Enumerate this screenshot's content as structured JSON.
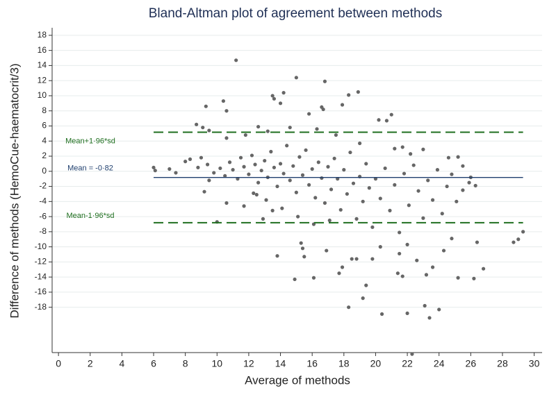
{
  "chart_data": {
    "type": "scatter",
    "title": "Bland-Altman plot of agreement between methods",
    "x_label": "Average of methods",
    "y_label": "Difference of methods (HemoCue-haematocrit/3)",
    "xlim": [
      -0.4,
      30.5
    ],
    "ylim": [
      -24,
      19
    ],
    "xticks": [
      0,
      2,
      4,
      6,
      8,
      10,
      12,
      14,
      16,
      18,
      20,
      22,
      24,
      26,
      28,
      30
    ],
    "yticks": [
      -18,
      -16,
      -14,
      -12,
      -10,
      -8,
      -6,
      -4,
      -2,
      0,
      2,
      4,
      6,
      8,
      10,
      12,
      14,
      16,
      18
    ],
    "grid": true,
    "color": "#666666",
    "hlines": [
      {
        "label": "Mean+1·96*sd",
        "value": 5.17,
        "color": "#1e6e1e",
        "style": "dashed"
      },
      {
        "label": "Mean = -0·82",
        "value": -0.82,
        "color": "#1f3f6e",
        "style": "solid"
      },
      {
        "label": "Mean-1·96*sd",
        "value": -6.81,
        "color": "#1e6e1e",
        "style": "dashed"
      }
    ],
    "x": [
      11.2,
      15,
      16.8,
      14.2,
      13.5,
      13.6,
      18.3,
      18.9,
      10.4,
      9.3,
      10.6,
      14,
      15.8,
      16.6,
      16.7,
      17.9,
      20.2,
      21,
      20.7,
      22.3,
      22,
      20.4,
      23.4,
      23.1,
      24,
      18.3,
      19.2,
      19.4,
      17.7,
      16.1,
      14.9,
      23.2,
      25.2,
      26.2,
      26.8,
      29.3,
      28.7,
      29,
      26.4,
      21.4,
      21.7,
      23.6,
      13.8,
      15.5,
      6,
      6.1,
      7,
      7.4,
      8,
      8.3,
      8.7,
      9.1,
      9.5,
      10.6,
      10,
      17.9,
      18.5,
      18.8,
      19.8,
      20.3,
      21.5,
      22,
      22.6,
      24.3,
      24.8,
      15.3,
      15.4,
      16.9,
      12.9,
      11.7,
      10.6,
      9.5,
      9.2,
      26.3,
      25.9,
      25.2,
      24.6,
      25.5,
      22.2,
      21.2,
      21.7,
      23,
      19,
      17.5,
      16.3,
      14.6,
      12.6,
      13.2,
      11.8,
      10.2,
      10.5,
      10.8,
      11,
      11.3,
      11.5,
      11.7,
      12,
      12.2,
      12.4,
      12.6,
      12.8,
      13,
      13.2,
      13.4,
      13.6,
      13.8,
      14,
      14.2,
      14.4,
      14.6,
      14.8,
      15,
      15.2,
      15.4,
      15.6,
      15.8,
      16,
      16.2,
      16.4,
      16.6,
      16.8,
      17,
      17.2,
      17.4,
      17.6,
      17.8,
      18,
      18.2,
      18.4,
      18.6,
      18.8,
      19,
      19.2,
      19.4,
      19.6,
      19.8,
      20,
      20.3,
      20.6,
      20.9,
      21.2,
      21.5,
      21.8,
      22.1,
      22.4,
      22.7,
      23,
      23.3,
      23.6,
      23.9,
      24.2,
      24.5,
      24.8,
      25.1,
      25.5,
      26,
      9,
      9.4,
      9.8,
      8.8,
      12.3,
      13.1,
      14.1,
      15.1,
      16.1,
      17.1,
      13.5,
      12.5
    ],
    "y": [
      14.7,
      12.4,
      11.9,
      10.4,
      10,
      9.6,
      10.1,
      10.5,
      9.3,
      8.6,
      8,
      9,
      7.6,
      8.5,
      8.2,
      8.8,
      6.8,
      7.5,
      6.7,
      -24.2,
      -18.8,
      -18.9,
      -19.4,
      -17.8,
      -18.3,
      -18,
      -16.8,
      -15.1,
      -13.5,
      -14.1,
      -14.3,
      -13.7,
      -14.1,
      -14.2,
      -12.9,
      -8,
      -9.4,
      -9,
      -9.4,
      -13.5,
      -13.9,
      -12.7,
      -11.2,
      -11.3,
      0.5,
      0.1,
      0.3,
      -0.2,
      1.3,
      1.6,
      6.2,
      5.8,
      5.4,
      4.4,
      -6.7,
      -12.7,
      -11.6,
      -11.6,
      -11.6,
      -10,
      -10.9,
      -9.7,
      -11.8,
      -10.5,
      -8.9,
      -9.5,
      -10.2,
      -10.5,
      -6.3,
      -4.6,
      -4.2,
      -1.2,
      -2.7,
      -1.9,
      -1.5,
      1.9,
      1.8,
      0.7,
      2.3,
      3,
      3.2,
      2.9,
      3.7,
      4.8,
      5.6,
      5.8,
      5.9,
      5.3,
      4.8,
      0.4,
      -0.6,
      1.2,
      0.2,
      -1,
      1.8,
      0.6,
      -0.4,
      2.1,
      0.9,
      -1.5,
      0.1,
      1.4,
      -0.8,
      2.6,
      0.5,
      -2,
      1,
      -0.3,
      3.4,
      -1.2,
      0.7,
      -2.8,
      1.9,
      -0.5,
      2.8,
      -1.8,
      0.3,
      -3.5,
      1.2,
      -0.9,
      -4.2,
      0.6,
      -2.4,
      1.7,
      -1,
      -5.1,
      0.2,
      -3,
      2.5,
      -1.6,
      -6.3,
      -0.7,
      -4,
      1,
      -2.2,
      -7.4,
      -1,
      -3.6,
      0.4,
      -5.2,
      -1.8,
      -8.1,
      -0.3,
      -4.5,
      0.8,
      -2.6,
      -6.2,
      -1.2,
      -3.8,
      0.2,
      -5.6,
      -2,
      -0.4,
      -4,
      -2.5,
      -0.8,
      1.8,
      0.9,
      -0.2,
      0.5,
      -2.9,
      -3.8,
      -4.9,
      -6,
      -7,
      -6.5,
      -5.2,
      -3.1
    ]
  }
}
